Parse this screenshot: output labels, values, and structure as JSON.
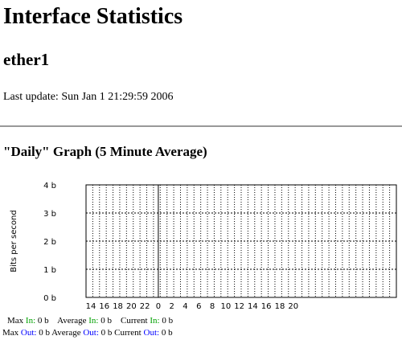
{
  "page": {
    "title": "Interface Statistics",
    "interface_name": "ether1",
    "last_update_label": "Last update:",
    "last_update_value": "Sun Jan 1 21:29:59 2006"
  },
  "graph_section": {
    "heading": "\"Daily\" Graph (5 Minute Average)"
  },
  "chart_data": {
    "type": "line",
    "ylabel": "Bits per second",
    "y_ticks": [
      "0 b",
      "1 b",
      "2 b",
      "3 b",
      "4 b"
    ],
    "x_ticks": [
      "14",
      "16",
      "18",
      "20",
      "22",
      "0",
      "2",
      "4",
      "6",
      "8",
      "10",
      "12",
      "14",
      "16",
      "18",
      "20"
    ],
    "ylim": [
      0,
      4
    ],
    "grid": true,
    "series": [
      {
        "name": "In",
        "color": "#00a000",
        "values": []
      },
      {
        "name": "Out",
        "color": "#0000ff",
        "values": []
      }
    ]
  },
  "stats": {
    "in": {
      "max_label": "Max",
      "max_key": "In:",
      "max_value": "0 b",
      "avg_label": "Average",
      "avg_key": "In:",
      "avg_value": "0 b",
      "cur_label": "Current",
      "cur_key": "In:",
      "cur_value": "0 b"
    },
    "out": {
      "max_label": "Max",
      "max_key": "Out:",
      "max_value": "0 b",
      "avg_label": "Average",
      "avg_key": "Out:",
      "avg_value": "0 b",
      "cur_label": "Current",
      "cur_key": "Out:",
      "cur_value": "0 b"
    }
  }
}
